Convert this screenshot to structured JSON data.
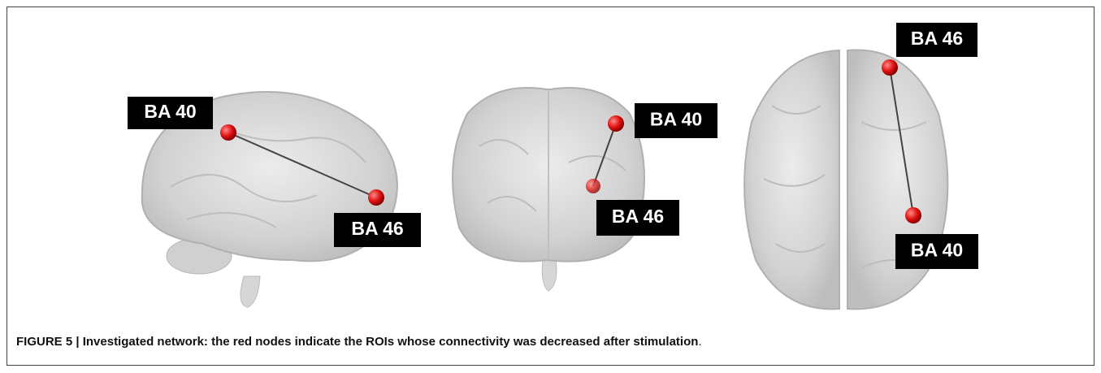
{
  "panels": [
    {
      "labels": [
        "BA 40",
        "BA 46"
      ]
    },
    {
      "labels": [
        "BA 40",
        "BA 46"
      ]
    },
    {
      "labels": [
        "BA 46",
        "BA 40"
      ]
    }
  ],
  "caption": {
    "bold": "FIGURE 5 | Investigated network: the red nodes indicate the ROIs whose connectivity was decreased after stimulation",
    "end": "."
  }
}
